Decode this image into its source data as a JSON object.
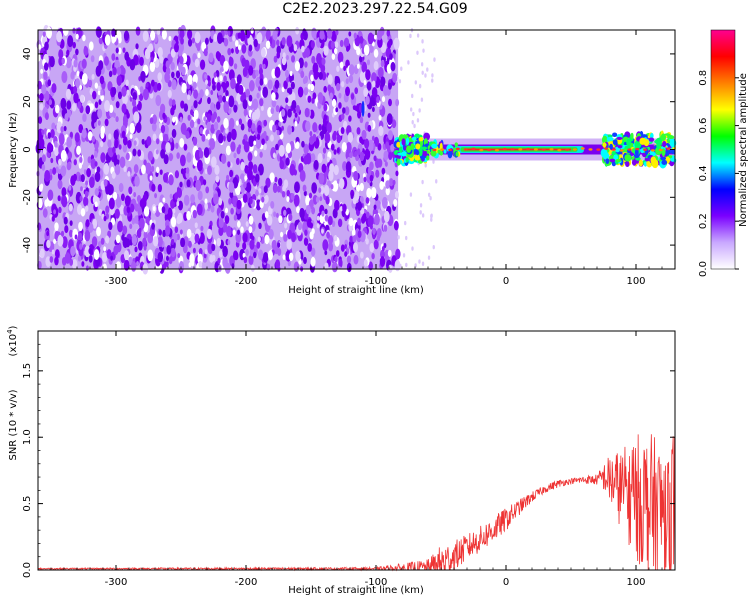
{
  "figure": {
    "title": "C2E2.2023.297.22.54.G09"
  },
  "chart_data": [
    {
      "type": "heatmap",
      "xlabel": "Height of straight line (km)",
      "ylabel": "Frequency (Hz)",
      "xlim": [
        -360,
        130
      ],
      "ylim": [
        -50,
        50
      ],
      "x_ticks": [
        -300,
        -200,
        -100,
        0,
        100
      ],
      "y_ticks": [
        -40,
        -20,
        0,
        20,
        40
      ],
      "noise_region_x": [
        -360,
        -83
      ],
      "signal_band_center_hz": 0,
      "colorbar": {
        "label": "Normalized spectral amplitude",
        "range": [
          0.0,
          1.0
        ],
        "ticks": [
          "0.0",
          "0.2",
          "0.4",
          "0.6",
          "0.8"
        ],
        "colors": [
          "#ffffff",
          "#c9a8ff",
          "#7a00ff",
          "#0000ff",
          "#00ffff",
          "#00ff00",
          "#ffff00",
          "#ff8000",
          "#ff0000",
          "#ff0090"
        ]
      }
    },
    {
      "type": "line",
      "xlabel": "Height of straight line (km)",
      "ylabel": "SNR (10 * v/v)",
      "scale_label": "(x10",
      "scale_exponent": "4",
      "scale_close": ")",
      "xlim": [
        -360,
        130
      ],
      "ylim": [
        0,
        1.8
      ],
      "x_ticks": [
        -300,
        -200,
        -100,
        0,
        100
      ],
      "y_ticks": [
        "0.0",
        "0.5",
        "1.0",
        "1.5"
      ],
      "color": "#ee3333",
      "envelope": {
        "x": [
          -360,
          -100,
          -60,
          -50,
          -40,
          -30,
          -20,
          -10,
          0,
          10,
          20,
          30,
          40,
          50,
          60,
          70,
          75,
          80,
          90,
          100,
          110,
          120,
          130
        ],
        "y": [
          0.01,
          0.01,
          0.02,
          0.05,
          0.1,
          0.17,
          0.23,
          0.3,
          0.38,
          0.47,
          0.55,
          0.61,
          0.65,
          0.67,
          0.68,
          0.68,
          0.7,
          0.68,
          0.6,
          0.55,
          0.5,
          0.45,
          0.5
        ],
        "amp": [
          0.005,
          0.01,
          0.06,
          0.14,
          0.12,
          0.1,
          0.1,
          0.1,
          0.09,
          0.06,
          0.04,
          0.03,
          0.03,
          0.02,
          0.03,
          0.04,
          0.1,
          0.2,
          0.32,
          0.48,
          0.55,
          0.5,
          0.6
        ]
      }
    }
  ]
}
